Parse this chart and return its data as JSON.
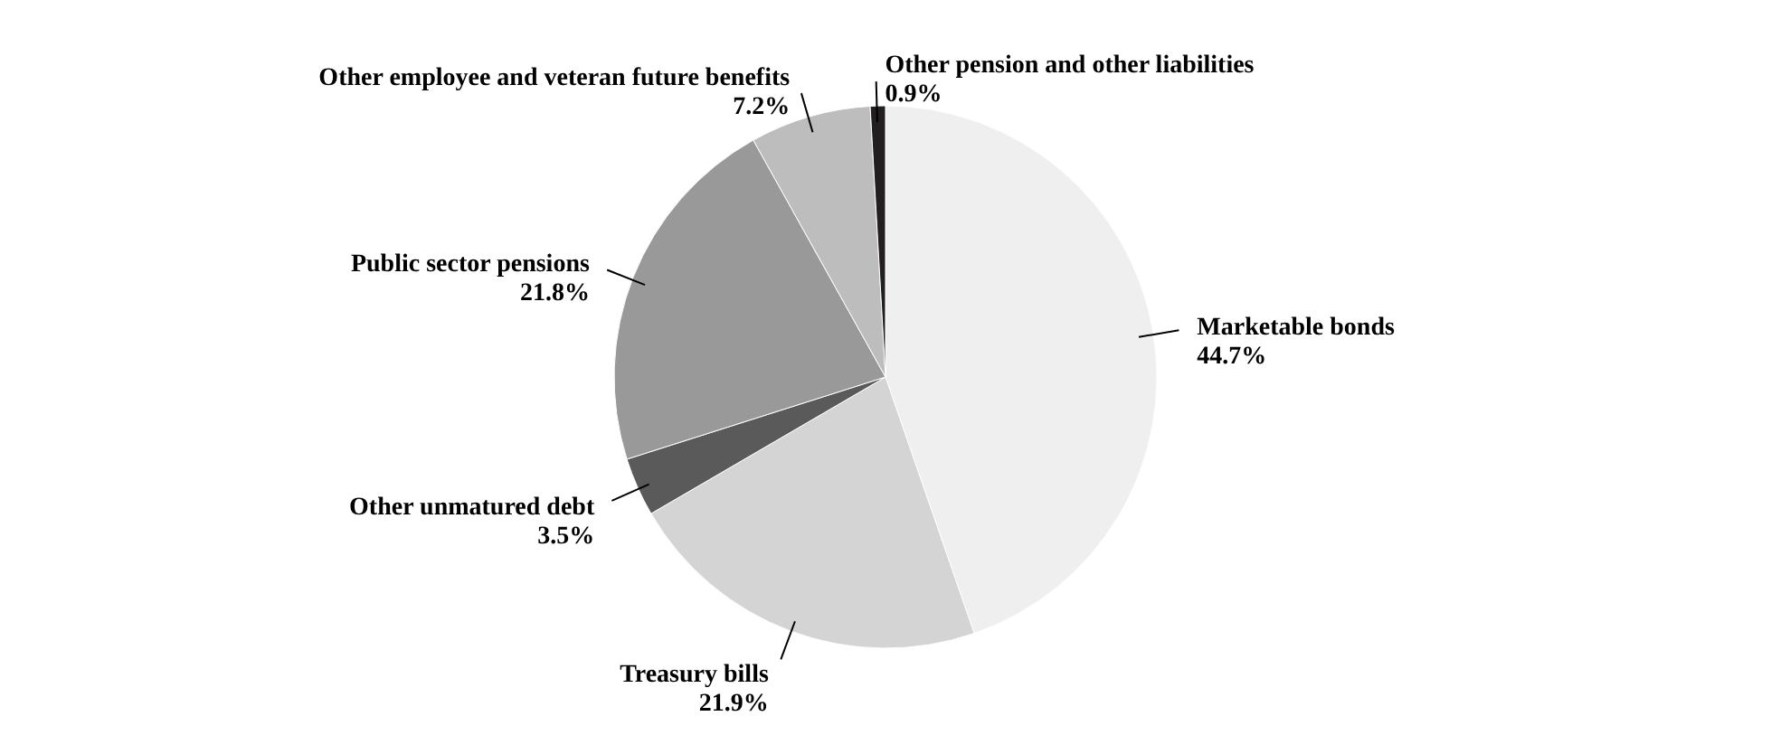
{
  "chart_data": {
    "type": "pie",
    "categories": [
      "Marketable bonds",
      "Treasury bills",
      "Other unmatured debt",
      "Public sector pensions",
      "Other employee and veteran future benefits",
      "Other pension and other liabilities"
    ],
    "values": [
      44.7,
      21.9,
      3.5,
      21.8,
      7.2,
      0.9
    ],
    "colors": [
      "#efefef",
      "#d4d4d4",
      "#5a5a5a",
      "#999999",
      "#bdbdbd",
      "#231f20"
    ],
    "value_labels": [
      "44.7%",
      "21.9%",
      "3.5%",
      "21.8%",
      "7.2%",
      "0.9%"
    ],
    "legend": false
  }
}
